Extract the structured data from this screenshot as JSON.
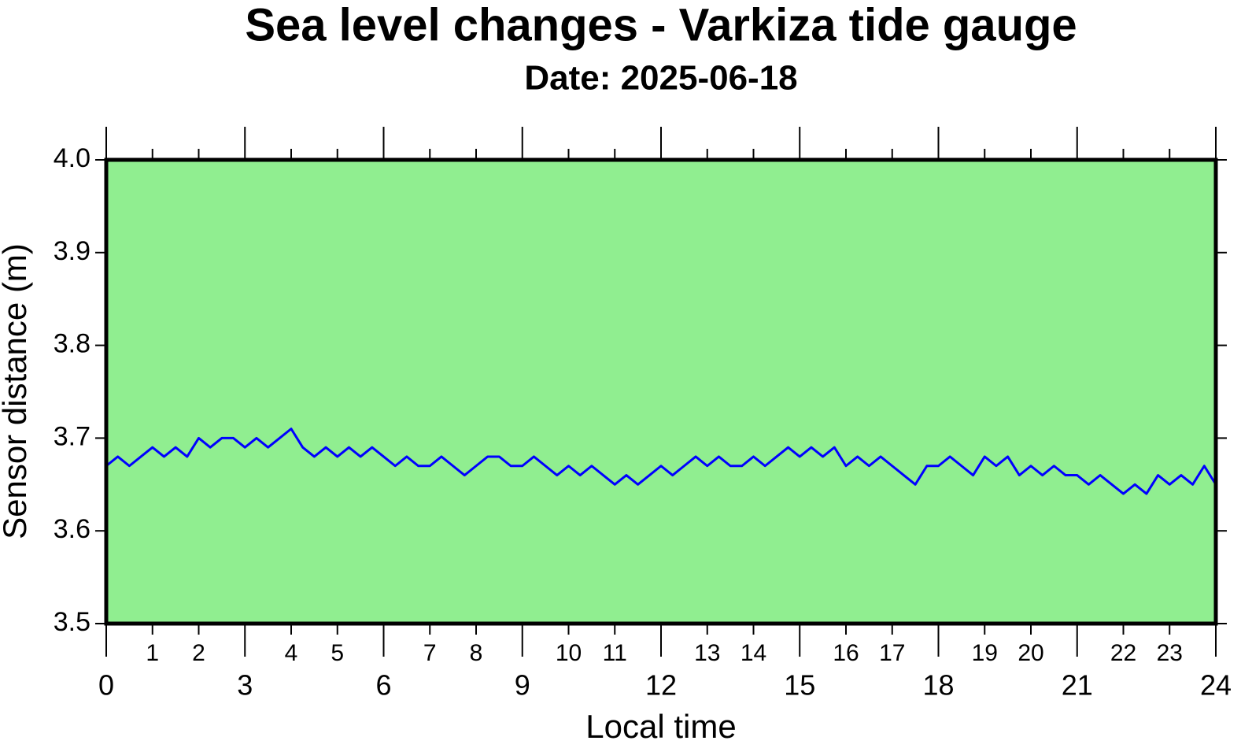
{
  "chart_data": {
    "type": "line",
    "title": "Sea level changes - Varkiza tide gauge",
    "subtitle": "Date: 2025-06-18",
    "x_label": "Local time",
    "y_label": "Sensor distance (m)",
    "background": "#90ee90",
    "xlim": [
      0,
      24
    ],
    "xticks": [
      0,
      3,
      6,
      9,
      12,
      15,
      18,
      21,
      24
    ],
    "xticks_minor": [
      1,
      2,
      4,
      5,
      7,
      8,
      10,
      11,
      13,
      14,
      16,
      17,
      19,
      20,
      22,
      23
    ],
    "ylim": [
      3.5,
      4.0
    ],
    "yticks": [
      3.5,
      3.6,
      3.7,
      3.8,
      3.9,
      {
        "value": 4.0,
        "label": "4.0"
      }
    ],
    "x": [
      0,
      0.25,
      0.5,
      0.75,
      1,
      1.25,
      1.5,
      1.75,
      2,
      2.25,
      2.5,
      2.75,
      3,
      3.25,
      3.5,
      3.75,
      4,
      4.25,
      4.5,
      4.75,
      5,
      5.25,
      5.5,
      5.75,
      6,
      6.25,
      6.5,
      6.75,
      7,
      7.25,
      7.5,
      7.75,
      8,
      8.25,
      8.5,
      8.75,
      9,
      9.25,
      9.5,
      9.75,
      10,
      10.25,
      10.5,
      10.75,
      11,
      11.25,
      11.5,
      11.75,
      12,
      12.25,
      12.5,
      12.75,
      13,
      13.25,
      13.5,
      13.75,
      14,
      14.25,
      14.5,
      14.75,
      15,
      15.25,
      15.5,
      15.75,
      16,
      16.25,
      16.5,
      16.75,
      17,
      17.25,
      17.5,
      17.75,
      18,
      18.25,
      18.5,
      18.75,
      19,
      19.25,
      19.5,
      19.75,
      20,
      20.25,
      20.5,
      20.75,
      21,
      21.25,
      21.5,
      21.75,
      22,
      22.25,
      22.5,
      22.75,
      23,
      23.25,
      23.5,
      23.75,
      24
    ],
    "series": [
      {
        "color": "#0000ff",
        "values": [
          3.67,
          3.68,
          3.67,
          3.68,
          3.69,
          3.68,
          3.69,
          3.68,
          3.7,
          3.69,
          3.7,
          3.7,
          3.69,
          3.7,
          3.69,
          3.7,
          3.71,
          3.69,
          3.68,
          3.69,
          3.68,
          3.69,
          3.68,
          3.69,
          3.68,
          3.67,
          3.68,
          3.67,
          3.67,
          3.68,
          3.67,
          3.66,
          3.67,
          3.68,
          3.68,
          3.67,
          3.67,
          3.68,
          3.67,
          3.66,
          3.67,
          3.66,
          3.67,
          3.66,
          3.65,
          3.66,
          3.65,
          3.66,
          3.67,
          3.66,
          3.67,
          3.68,
          3.67,
          3.68,
          3.67,
          3.67,
          3.68,
          3.67,
          3.68,
          3.69,
          3.68,
          3.69,
          3.68,
          3.69,
          3.67,
          3.68,
          3.67,
          3.68,
          3.67,
          3.66,
          3.65,
          3.67,
          3.67,
          3.68,
          3.67,
          3.66,
          3.68,
          3.67,
          3.68,
          3.66,
          3.67,
          3.66,
          3.67,
          3.66,
          3.66,
          3.65,
          3.66,
          3.65,
          3.64,
          3.65,
          3.64,
          3.66,
          3.65,
          3.66,
          3.65,
          3.67,
          3.65
        ]
      }
    ]
  }
}
